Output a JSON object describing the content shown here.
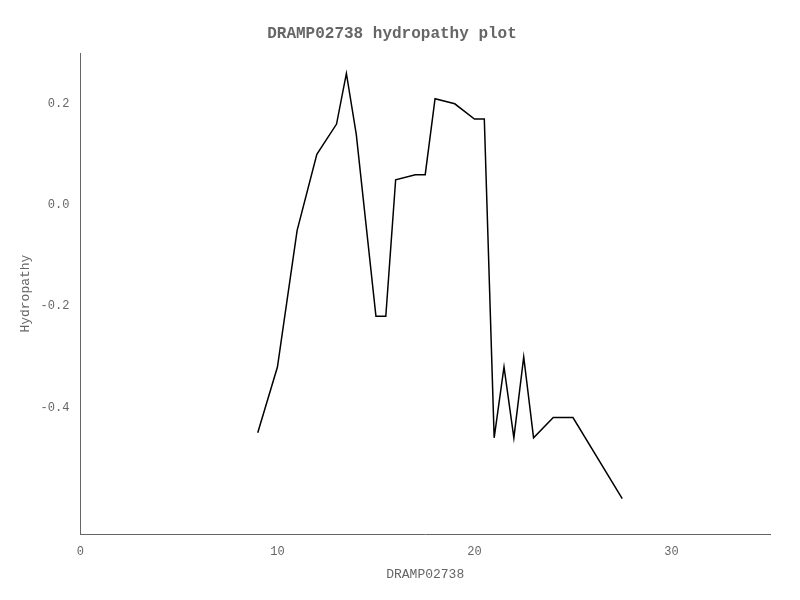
{
  "chart_data": {
    "type": "line",
    "title": "DRAMP02738 hydropathy plot",
    "xlabel": "DRAMP02738",
    "ylabel": "Hydropathy",
    "xlim": [
      0,
      35
    ],
    "ylim": [
      -0.65,
      0.3
    ],
    "xticks": [
      0,
      10,
      20,
      30
    ],
    "yticks": [
      -0.4,
      -0.2,
      {
        "value": 0.0,
        "label": "0.0"
      },
      0.2
    ],
    "color": "#000000",
    "grid": false,
    "x": [
      9,
      10,
      11,
      12,
      13,
      13.5,
      14,
      15,
      15.5,
      16,
      17,
      17.5,
      18,
      19,
      20,
      20.5,
      21,
      21.5,
      22,
      22.5,
      23,
      24,
      24.5,
      25,
      27.5
    ],
    "values": [
      -0.45,
      -0.32,
      -0.05,
      0.1,
      0.16,
      0.26,
      0.14,
      -0.22,
      -0.22,
      0.05,
      0.06,
      0.06,
      0.21,
      0.2,
      0.17,
      0.17,
      -0.46,
      -0.32,
      -0.46,
      -0.3,
      -0.46,
      -0.42,
      -0.42,
      -0.42,
      -0.58
    ]
  }
}
